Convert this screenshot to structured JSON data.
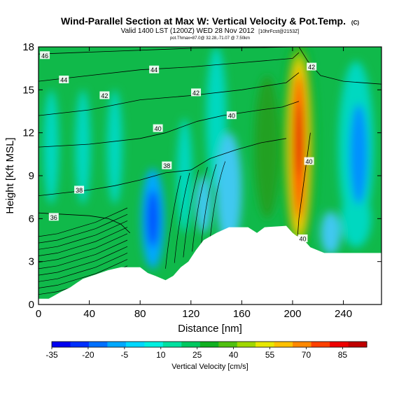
{
  "chart_data": {
    "type": "heatmap",
    "title": "Wind-Parallel Section at Max W: Vertical Velocity & Pot.Temp.",
    "title_mark": "(C)",
    "subtitle": "Valid 1400 LST (1200Z) WED 28 Nov 2012",
    "subtitle_note": "[10hrFcst@2153Z]",
    "subtitle2": "pot.Thmax=87.0@ 32.28,-71.07 @ 7.50km",
    "xlabel": "Distance [nm]",
    "ylabel": "Height [Kft MSL]",
    "xlim": [
      0,
      270
    ],
    "ylim": [
      0,
      18
    ],
    "xticks": [
      0,
      40,
      80,
      120,
      160,
      200,
      240
    ],
    "yticks": [
      0,
      3,
      6,
      9,
      12,
      15,
      18
    ],
    "colorbar": {
      "label": "Vertical Velocity [cm/s]",
      "range": [
        -35,
        95
      ],
      "ticks": [
        -35,
        -20,
        -5,
        10,
        25,
        40,
        55,
        70,
        85
      ],
      "colors": [
        "#0000f0",
        "#0030ff",
        "#0070ff",
        "#00a8ff",
        "#00d8ff",
        "#00f0e0",
        "#00e0a0",
        "#00c860",
        "#10b020",
        "#50c010",
        "#a0d800",
        "#e8e800",
        "#ffc000",
        "#ff8800",
        "#ff4000",
        "#ee0000",
        "#c00000"
      ]
    },
    "vertical_velocity_features": [
      {
        "kind": "max",
        "x": 205,
        "y": 11,
        "value": 87
      },
      {
        "kind": "min",
        "x": 90,
        "y": 6,
        "value": -30
      },
      {
        "kind": "min",
        "x": 252,
        "y": 10.5,
        "value": -12
      }
    ],
    "theta_contours": [
      {
        "label": "36",
        "points": [
          [
            0,
            6.4
          ],
          [
            20,
            6.3
          ],
          [
            40,
            6.2
          ],
          [
            55,
            6.0
          ],
          [
            65,
            5.6
          ],
          [
            72,
            5.0
          ]
        ]
      },
      {
        "label": "38",
        "points": [
          [
            0,
            7.6
          ],
          [
            20,
            7.8
          ],
          [
            40,
            8.0
          ],
          [
            60,
            8.3
          ],
          [
            80,
            8.7
          ],
          [
            100,
            9.2
          ],
          [
            120,
            9.4
          ],
          [
            135,
            10.2
          ],
          [
            155,
            10.8
          ],
          [
            175,
            11.3
          ],
          [
            195,
            11.6
          ]
        ]
      },
      {
        "label": "40",
        "points": [
          [
            0,
            11.0
          ],
          [
            40,
            11.2
          ],
          [
            80,
            11.6
          ],
          [
            100,
            12.0
          ],
          [
            125,
            12.8
          ],
          [
            145,
            13.2
          ],
          [
            160,
            13.4
          ],
          [
            175,
            13.6
          ],
          [
            192,
            13.8
          ],
          [
            205,
            14.2
          ]
        ]
      },
      {
        "label": "42",
        "points": [
          [
            0,
            13.2
          ],
          [
            40,
            13.6
          ],
          [
            80,
            14.3
          ],
          [
            120,
            14.6
          ],
          [
            160,
            15.0
          ],
          [
            195,
            15.5
          ],
          [
            205,
            16.2
          ]
        ]
      },
      {
        "label": "44",
        "points": [
          [
            0,
            15.6
          ],
          [
            40,
            16.0
          ],
          [
            80,
            16.4
          ],
          [
            120,
            16.6
          ],
          [
            160,
            16.9
          ],
          [
            200,
            17.2
          ],
          [
            205,
            17.6
          ]
        ]
      },
      {
        "label": "46",
        "points": [
          [
            0,
            17.5
          ],
          [
            60,
            17.7
          ],
          [
            120,
            17.9
          ],
          [
            175,
            17.95
          ],
          [
            205,
            18.0
          ]
        ]
      },
      {
        "label": "40",
        "points": [
          [
            214,
            12.0
          ],
          [
            211,
            10.0
          ],
          [
            208,
            8.0
          ],
          [
            205,
            6.0
          ],
          [
            204,
            4.8
          ]
        ]
      },
      {
        "label": "42",
        "points": [
          [
            205,
            18.0
          ],
          [
            212,
            17.0
          ],
          [
            222,
            16.0
          ],
          [
            240,
            15.6
          ],
          [
            270,
            15.4
          ]
        ]
      }
    ],
    "theta_contour_labels": [
      {
        "text": "46",
        "x": 5,
        "y": 17.4
      },
      {
        "text": "44",
        "x": 20,
        "y": 15.7
      },
      {
        "text": "44",
        "x": 91,
        "y": 16.4
      },
      {
        "text": "42",
        "x": 52,
        "y": 14.6
      },
      {
        "text": "42",
        "x": 124,
        "y": 14.8
      },
      {
        "text": "40",
        "x": 152,
        "y": 13.2
      },
      {
        "text": "40",
        "x": 94,
        "y": 12.3
      },
      {
        "text": "38",
        "x": 101,
        "y": 9.7
      },
      {
        "text": "38",
        "x": 32,
        "y": 8.0
      },
      {
        "text": "36",
        "x": 12,
        "y": 6.1
      },
      {
        "text": "42",
        "x": 215,
        "y": 16.6
      },
      {
        "text": "40",
        "x": 213,
        "y": 10.0
      },
      {
        "text": "40",
        "x": 208,
        "y": 4.6
      }
    ],
    "terrain": [
      [
        0,
        0.4
      ],
      [
        8,
        0.4
      ],
      [
        12,
        0.6
      ],
      [
        18,
        0.9
      ],
      [
        25,
        1.2
      ],
      [
        30,
        1.5
      ],
      [
        35,
        1.8
      ],
      [
        45,
        2.1
      ],
      [
        55,
        2.4
      ],
      [
        65,
        2.6
      ],
      [
        80,
        2.6
      ],
      [
        86,
        2.2
      ],
      [
        92,
        2.0
      ],
      [
        100,
        1.7
      ],
      [
        106,
        2.0
      ],
      [
        112,
        2.6
      ],
      [
        118,
        3.0
      ],
      [
        124,
        3.8
      ],
      [
        130,
        4.5
      ],
      [
        140,
        5.0
      ],
      [
        150,
        5.4
      ],
      [
        165,
        5.4
      ],
      [
        172,
        5.0
      ],
      [
        178,
        5.4
      ],
      [
        195,
        5.5
      ],
      [
        200,
        5.0
      ],
      [
        203,
        4.8
      ],
      [
        208,
        4.6
      ],
      [
        214,
        4.0
      ],
      [
        225,
        3.6
      ],
      [
        240,
        3.6
      ],
      [
        270,
        3.6
      ]
    ]
  }
}
